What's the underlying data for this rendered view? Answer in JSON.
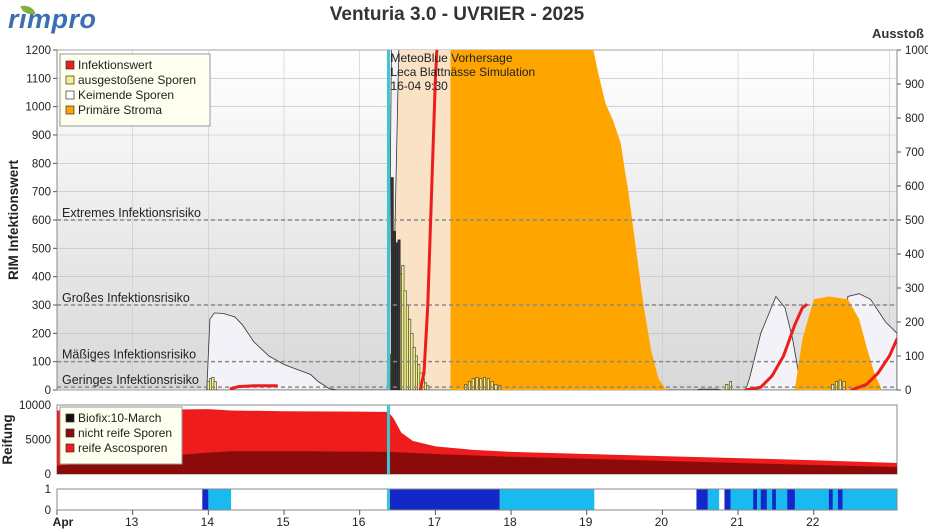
{
  "header": {
    "logo": "rimpro",
    "title": "Venturia 3.0 - UVRIER - 2025",
    "right_axis_title": "Ausstoß"
  },
  "colors": {
    "infection": "#ee1c1c",
    "ejected": "#f3ef8a",
    "germinating": "#f2f2f8",
    "primary_stroma": "#ffa500",
    "stroma_light": "#f9e2c6",
    "forecast_line": "#40c4d0",
    "mature_spores": "#ee1c1c",
    "immature_spores": "#8b0a0a",
    "wet_dark": "#1428c8",
    "wet_light": "#19baf0"
  },
  "chart_data": [
    {
      "type": "area",
      "name": "RIM main panel",
      "ylabel": "RIM Infektionswert",
      "ylim": [
        0,
        1200
      ],
      "y_ticks": [
        0,
        100,
        200,
        300,
        400,
        500,
        600,
        700,
        800,
        900,
        1000,
        1100,
        1200
      ],
      "y2lim": [
        0,
        1000
      ],
      "y2_ticks": [
        0,
        100,
        200,
        300,
        400,
        500,
        600,
        700,
        800,
        900,
        1000
      ],
      "xlim": [
        12.0,
        23.1
      ],
      "risk_levels": [
        {
          "label": "Extremes Infektionsrisiko",
          "value": 600
        },
        {
          "label": "Großes Infektionsrisiko",
          "value": 300
        },
        {
          "label": "Mäßiges Infektionsrisiko",
          "value": 100
        },
        {
          "label": "Geringes Infektionsrisiko",
          "value": 10
        }
      ],
      "forecast_marker": {
        "x": 16.38,
        "lines": [
          "MeteoBlue Vorhersage",
          "Leca Blattnässe Simulation",
          "16-04 9:30"
        ]
      },
      "legend": [
        "Infektionswert",
        "ausgestoßene Sporen",
        "Keimende Sporen",
        "Primäre Stroma"
      ],
      "germinating_spores": [
        [
          13.98,
          0
        ],
        [
          14.02,
          250
        ],
        [
          14.08,
          272
        ],
        [
          14.2,
          270
        ],
        [
          14.35,
          258
        ],
        [
          14.45,
          230
        ],
        [
          14.6,
          170
        ],
        [
          14.8,
          120
        ],
        [
          15.0,
          90
        ],
        [
          15.2,
          70
        ],
        [
          15.35,
          55
        ],
        [
          15.45,
          30
        ],
        [
          15.6,
          5
        ],
        [
          15.7,
          0
        ],
        [
          16.38,
          0
        ],
        [
          16.42,
          1250
        ],
        [
          16.6,
          1250
        ],
        [
          16.7,
          1250
        ],
        [
          16.72,
          1020
        ],
        [
          16.76,
          900
        ],
        [
          16.8,
          700
        ],
        [
          16.9,
          400
        ],
        [
          17.0,
          180
        ],
        [
          17.05,
          80
        ],
        [
          17.1,
          20
        ],
        [
          17.2,
          0
        ],
        [
          20.45,
          0
        ],
        [
          20.5,
          3
        ],
        [
          20.72,
          3
        ],
        [
          20.78,
          0
        ],
        [
          21.1,
          0
        ],
        [
          21.15,
          40
        ],
        [
          21.3,
          200
        ],
        [
          21.5,
          330
        ],
        [
          21.62,
          290
        ],
        [
          21.72,
          180
        ],
        [
          21.8,
          60
        ],
        [
          21.88,
          0
        ],
        [
          22.4,
          0
        ],
        [
          22.45,
          330
        ],
        [
          22.6,
          340
        ],
        [
          22.75,
          320
        ],
        [
          22.95,
          240
        ],
        [
          23.1,
          200
        ]
      ],
      "primary_stroma_light": [
        [
          16.42,
          0
        ],
        [
          16.52,
          1250
        ],
        [
          17.0,
          1250
        ],
        [
          17.3,
          1250
        ],
        [
          17.4,
          1150
        ],
        [
          17.5,
          960
        ],
        [
          17.65,
          860
        ],
        [
          17.85,
          800
        ],
        [
          18.05,
          740
        ],
        [
          18.2,
          650
        ],
        [
          18.35,
          510
        ],
        [
          18.5,
          330
        ],
        [
          18.65,
          100
        ],
        [
          18.75,
          20
        ],
        [
          18.85,
          0
        ]
      ],
      "primary_stroma": [
        [
          17.2,
          1250
        ],
        [
          17.3,
          1250
        ],
        [
          17.6,
          1250
        ],
        [
          17.9,
          1250
        ],
        [
          18.2,
          1250
        ],
        [
          18.5,
          1250
        ],
        [
          18.8,
          1250
        ],
        [
          19.05,
          1250
        ],
        [
          19.15,
          1120
        ],
        [
          19.25,
          1010
        ],
        [
          19.35,
          950
        ],
        [
          19.45,
          870
        ],
        [
          19.5,
          780
        ],
        [
          19.55,
          700
        ],
        [
          19.6,
          600
        ],
        [
          19.65,
          500
        ],
        [
          19.7,
          400
        ],
        [
          19.75,
          300
        ],
        [
          19.85,
          140
        ],
        [
          19.95,
          40
        ],
        [
          20.05,
          0
        ]
      ],
      "primary_stroma_2": [
        [
          21.75,
          0
        ],
        [
          21.85,
          180
        ],
        [
          22.0,
          320
        ],
        [
          22.2,
          330
        ],
        [
          22.45,
          320
        ],
        [
          22.6,
          250
        ],
        [
          22.7,
          150
        ],
        [
          22.8,
          60
        ],
        [
          22.9,
          0
        ]
      ],
      "ejected_spores": [
        [
          14.0,
          30
        ],
        [
          14.03,
          40
        ],
        [
          14.06,
          45
        ],
        [
          14.09,
          30
        ],
        [
          16.38,
          60
        ],
        [
          16.42,
          125
        ],
        [
          16.45,
          150
        ],
        [
          16.48,
          300
        ],
        [
          16.51,
          340
        ],
        [
          16.54,
          410
        ],
        [
          16.57,
          440
        ],
        [
          16.6,
          350
        ],
        [
          16.63,
          300
        ],
        [
          16.66,
          250
        ],
        [
          16.69,
          200
        ],
        [
          16.72,
          150
        ],
        [
          16.75,
          120
        ],
        [
          16.78,
          90
        ],
        [
          16.81,
          60
        ],
        [
          16.84,
          40
        ],
        [
          16.87,
          25
        ],
        [
          16.9,
          15
        ],
        [
          17.4,
          20
        ],
        [
          17.45,
          30
        ],
        [
          17.5,
          40
        ],
        [
          17.55,
          45
        ],
        [
          17.6,
          40
        ],
        [
          17.65,
          45
        ],
        [
          17.7,
          40
        ],
        [
          17.75,
          30
        ],
        [
          17.8,
          20
        ],
        [
          17.85,
          15
        ],
        [
          20.85,
          20
        ],
        [
          20.9,
          30
        ],
        [
          22.25,
          20
        ],
        [
          22.3,
          30
        ],
        [
          22.35,
          35
        ],
        [
          22.4,
          30
        ]
      ],
      "infection_value": [
        [
          [
            14.3,
            5
          ],
          [
            14.4,
            12
          ],
          [
            14.6,
            15
          ],
          [
            14.9,
            15
          ]
        ],
        [
          [
            16.8,
            0
          ],
          [
            16.85,
            60
          ],
          [
            16.9,
            300
          ],
          [
            16.95,
            700
          ],
          [
            17.0,
            1100
          ],
          [
            17.03,
            1250
          ]
        ],
        [
          [
            21.1,
            0
          ],
          [
            21.3,
            10
          ],
          [
            21.45,
            50
          ],
          [
            21.6,
            120
          ],
          [
            21.75,
            230
          ],
          [
            21.85,
            290
          ],
          [
            21.9,
            300
          ]
        ],
        [
          [
            22.5,
            0
          ],
          [
            22.7,
            20
          ],
          [
            22.85,
            60
          ],
          [
            23.0,
            120
          ],
          [
            23.1,
            180
          ]
        ]
      ]
    },
    {
      "type": "area",
      "name": "Reifung panel",
      "ylabel": "Reifung",
      "ylim": [
        0,
        10000
      ],
      "y_ticks": [
        0,
        5000,
        10000
      ],
      "legend": [
        "Biofix:10-March",
        "nicht reife Sporen",
        "reife Ascosporen"
      ],
      "total_spores": [
        [
          12.0,
          9200
        ],
        [
          13.0,
          9300
        ],
        [
          13.6,
          9350
        ],
        [
          14.0,
          9400
        ],
        [
          14.3,
          9200
        ],
        [
          15.0,
          9100
        ],
        [
          16.0,
          9050
        ],
        [
          16.38,
          9000
        ],
        [
          16.45,
          8000
        ],
        [
          16.55,
          6000
        ],
        [
          16.7,
          4800
        ],
        [
          17.0,
          4000
        ],
        [
          17.5,
          3500
        ],
        [
          18.0,
          3200
        ],
        [
          19.0,
          2900
        ],
        [
          20.0,
          2600
        ],
        [
          21.0,
          2300
        ],
        [
          22.0,
          2000
        ],
        [
          23.1,
          1600
        ]
      ],
      "immature_spores": [
        [
          12.0,
          1200
        ],
        [
          13.0,
          2200
        ],
        [
          14.0,
          3100
        ],
        [
          14.3,
          3300
        ],
        [
          15.0,
          3300
        ],
        [
          16.0,
          3250
        ],
        [
          16.38,
          3200
        ],
        [
          17.0,
          2900
        ],
        [
          18.0,
          2500
        ],
        [
          19.0,
          2200
        ],
        [
          20.0,
          1900
        ],
        [
          21.0,
          1600
        ],
        [
          22.0,
          1300
        ],
        [
          23.1,
          1000
        ]
      ]
    },
    {
      "type": "bar",
      "name": "Blattnässe strip",
      "ylim": [
        0,
        1
      ],
      "y_ticks": [
        0,
        1
      ],
      "x_tick_labels": [
        "Apr",
        "13",
        "14",
        "15",
        "16",
        "17",
        "18",
        "19",
        "20",
        "21",
        "22"
      ],
      "dark_periods": [
        [
          13.92,
          14.0
        ],
        [
          16.38,
          17.85
        ],
        [
          20.45,
          20.6
        ],
        [
          20.82,
          20.9
        ],
        [
          21.2,
          21.25
        ],
        [
          21.3,
          21.38
        ],
        [
          21.45,
          21.5
        ],
        [
          21.65,
          21.75
        ],
        [
          22.2,
          22.25
        ],
        [
          22.32,
          22.38
        ]
      ],
      "light_periods": [
        [
          14.0,
          14.3
        ],
        [
          17.85,
          19.1
        ],
        [
          20.6,
          20.75
        ],
        [
          20.9,
          23.1
        ]
      ]
    }
  ]
}
